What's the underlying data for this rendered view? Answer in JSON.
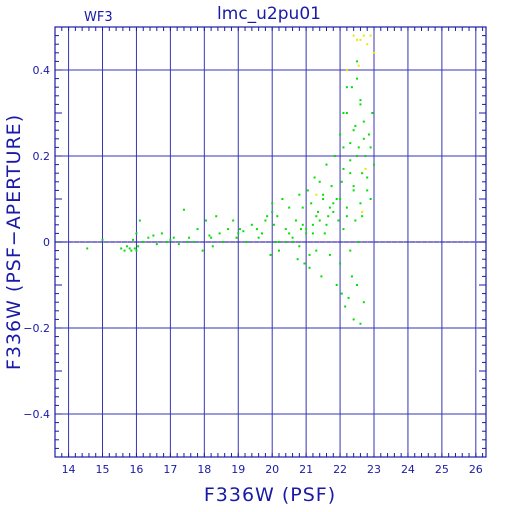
{
  "chart_data": {
    "type": "scatter",
    "title": "lmc_u2pu01",
    "panel_label": "WF3",
    "xlabel": "F336W (PSF)",
    "ylabel": "F336W (PSF−APERTURE)",
    "xlim": [
      13.6,
      26.3
    ],
    "ylim": [
      -0.5,
      0.5
    ],
    "x_ticks": [
      14,
      15,
      16,
      17,
      18,
      19,
      20,
      21,
      22,
      23,
      24,
      25,
      26
    ],
    "x_tick_labels": [
      "14",
      "15",
      "16",
      "17",
      "18",
      "19",
      "20",
      "21",
      "22",
      "23",
      "24",
      "25",
      "26"
    ],
    "y_ticks": [
      -0.4,
      -0.2,
      0,
      0.2,
      0.4
    ],
    "y_tick_labels": [
      "−0.4",
      "−0.2",
      "0",
      "0.2",
      "0.4"
    ],
    "grid": true,
    "colors": {
      "axes": "#1a1aa6",
      "grid": "#3535b5",
      "zero_line": "#ff69b4",
      "series_main": "#00e000",
      "series_flagged": "#e8e800"
    },
    "series": [
      {
        "color_key": "series_main",
        "x": [
          14.55,
          15.0,
          15.55,
          15.65,
          15.72,
          15.8,
          15.85,
          15.9,
          15.95,
          16.0,
          16.05,
          16.1,
          16.2,
          16.35,
          16.5,
          16.6,
          16.75,
          16.9,
          17.0,
          17.1,
          17.25,
          17.4,
          17.55,
          17.7,
          17.8,
          17.95,
          18.05,
          18.15,
          18.25,
          18.35,
          18.45,
          18.55,
          18.7,
          18.85,
          18.95,
          19.05,
          19.15,
          19.25,
          19.4,
          19.55,
          19.7,
          19.85,
          19.95,
          20.0,
          20.05,
          20.1,
          20.15,
          20.2,
          20.3,
          20.4,
          20.5,
          20.6,
          20.7,
          20.75,
          20.8,
          20.85,
          20.9,
          20.95,
          21.0,
          21.05,
          21.1,
          21.15,
          21.2,
          21.25,
          21.3,
          21.35,
          21.4,
          21.45,
          21.5,
          21.55,
          21.6,
          21.65,
          21.7,
          21.75,
          21.8,
          21.85,
          21.9,
          21.95,
          22.0,
          22.0,
          22.05,
          22.05,
          22.1,
          22.1,
          22.15,
          22.2,
          22.2,
          22.25,
          22.3,
          22.3,
          22.35,
          22.35,
          22.4,
          22.4,
          22.45,
          22.45,
          22.5,
          22.5,
          22.55,
          22.55,
          22.6,
          22.6,
          22.65,
          22.65,
          22.7,
          22.7,
          22.75,
          22.8,
          22.85,
          22.9,
          22.95,
          23.0,
          20.2,
          20.6,
          21.0,
          21.4,
          21.8,
          22.2,
          22.6,
          20.8,
          21.2,
          21.6,
          22.0,
          22.4,
          22.8,
          19.6,
          20.4,
          21.1,
          21.7,
          22.3,
          22.9,
          20.0,
          20.9,
          21.5,
          22.1,
          22.7,
          16.0,
          17.5,
          18.2,
          19.0,
          19.8,
          20.5,
          21.3,
          21.9,
          22.5,
          22.2,
          22.4,
          22.6,
          22.3,
          22.5,
          22.1
        ],
        "y": [
          -0.015,
          0.005,
          -0.015,
          -0.02,
          -0.01,
          -0.015,
          -0.02,
          0.005,
          -0.015,
          0.02,
          -0.01,
          0.05,
          0.0,
          0.01,
          0.015,
          -0.005,
          0.02,
          0.0,
          0.005,
          0.01,
          -0.005,
          0.075,
          0.01,
          0.0,
          0.03,
          -0.02,
          0.05,
          0.015,
          -0.01,
          0.06,
          0.02,
          0.0,
          0.03,
          0.05,
          0.01,
          0.03,
          0.025,
          0.0,
          0.04,
          0.03,
          0.02,
          0.06,
          -0.03,
          0.09,
          0.04,
          0.0,
          0.06,
          -0.02,
          0.1,
          0.03,
          0.08,
          0.0,
          0.05,
          -0.04,
          0.11,
          0.03,
          0.08,
          -0.05,
          0.02,
          0.12,
          -0.06,
          0.09,
          0.04,
          0.15,
          -0.02,
          0.07,
          0.14,
          -0.08,
          0.1,
          0.02,
          0.18,
          0.06,
          -0.03,
          0.13,
          0.09,
          0.2,
          -0.1,
          0.05,
          0.25,
          -0.05,
          0.14,
          -0.12,
          0.22,
          0.03,
          -0.15,
          0.3,
          0.08,
          -0.13,
          0.19,
          -0.02,
          0.36,
          -0.08,
          0.13,
          -0.18,
          0.27,
          0.05,
          0.38,
          -0.1,
          0.22,
          0.0,
          0.33,
          -0.19,
          0.16,
          0.06,
          0.28,
          -0.14,
          0.2,
          0.12,
          0.25,
          0.1,
          0.3,
          0.18,
          0.0,
          0.01,
          0.03,
          0.05,
          0.07,
          0.06,
          0.09,
          -0.01,
          0.02,
          0.04,
          0.1,
          0.12,
          0.15,
          0.01,
          0.0,
          -0.03,
          0.08,
          0.16,
          0.22,
          0.07,
          0.04,
          0.11,
          0.17,
          0.24,
          -0.02,
          0.0,
          0.01,
          0.02,
          0.05,
          0.02,
          0.06,
          0.1,
          0.42,
          0.36,
          0.26,
          0.32,
          0.23,
          0.2,
          0.3
        ]
      },
      {
        "color_key": "series_flagged",
        "x": [
          22.4,
          22.5,
          22.6,
          22.7,
          22.8,
          22.9,
          23.0,
          22.55,
          22.75,
          22.65,
          21.3,
          22.2
        ],
        "y": [
          0.48,
          0.47,
          0.47,
          0.48,
          0.46,
          0.48,
          0.44,
          0.41,
          0.17,
          0.07,
          0.11,
          0.4
        ]
      }
    ]
  }
}
